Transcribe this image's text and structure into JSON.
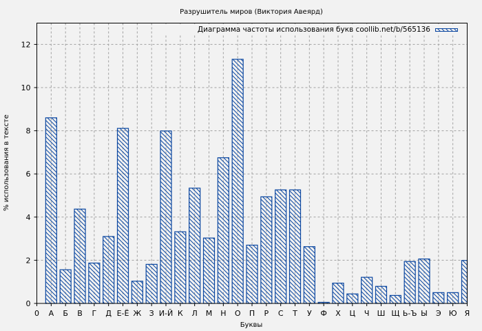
{
  "chart_data": {
    "type": "bar",
    "title": "Разрушитель миров (Виктория Авеярд)",
    "xlabel": "Буквы",
    "ylabel": "% использования в тексте",
    "legend": [
      "Диаграмма частоты использования букв coollib.net/b/565136"
    ],
    "legend_position": "top-right",
    "grid": true,
    "ylim": [
      0,
      13
    ],
    "yticks": [
      0,
      2,
      4,
      6,
      8,
      10,
      12
    ],
    "xtick_labels": [
      "0",
      "А",
      "Б",
      "В",
      "Г",
      "Д",
      "Е-Ё",
      "Ж",
      "З",
      "И-Й",
      "К",
      "Л",
      "М",
      "Н",
      "О",
      "П",
      "Р",
      "С",
      "Т",
      "У",
      "Ф",
      "Х",
      "Ц",
      "Ч",
      "Ш",
      "Щ",
      "Ь-Ъ",
      "Ы",
      "Э",
      "Ю",
      "Я"
    ],
    "categories": [
      "А",
      "Б",
      "В",
      "Г",
      "Д",
      "Е-Ё",
      "Ж",
      "З",
      "И-Й",
      "К",
      "Л",
      "М",
      "Н",
      "О",
      "П",
      "Р",
      "С",
      "Т",
      "У",
      "Ф",
      "Х",
      "Ц",
      "Ч",
      "Ш",
      "Щ",
      "Ь-Ъ",
      "Ы",
      "Э",
      "Ю",
      "Я"
    ],
    "series": [
      {
        "name": "Диаграмма частоты использования букв coollib.net/b/565136",
        "values": [
          8.6,
          1.56,
          4.37,
          1.87,
          3.1,
          8.11,
          1.03,
          1.81,
          7.99,
          3.32,
          5.34,
          3.03,
          6.75,
          11.31,
          2.7,
          4.94,
          5.26,
          5.26,
          2.63,
          0.05,
          0.94,
          0.44,
          1.21,
          0.79,
          0.37,
          1.94,
          2.06,
          0.5,
          0.5,
          1.99
        ]
      }
    ],
    "colors": {
      "bar": "#0a46a0",
      "background": "#f2f2f2",
      "grid": "#a0a0a0"
    }
  }
}
